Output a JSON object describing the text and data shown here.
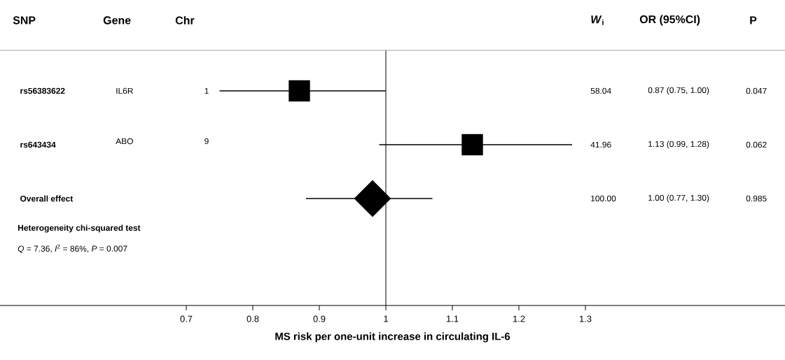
{
  "chart_data": {
    "type": "scatter",
    "orientation": "horizontal",
    "categories": [
      "rs56383622",
      "rs643434",
      "Overall  effect"
    ],
    "series": [
      {
        "color": "#000000",
        "marker": "square",
        "values": [
          0.87,
          1.13,
          null
        ],
        "errors": [
          [
            0.75,
            1.0
          ],
          [
            0.99,
            1.28
          ],
          null
        ]
      },
      {
        "color": "#000000",
        "marker": "diamond",
        "values": [
          null,
          null,
          0.98
        ],
        "errors": [
          null,
          null,
          [
            0.88,
            1.07
          ]
        ]
      }
    ],
    "xlim": [
      0.42,
      1.6
    ],
    "xticks": [
      0.7,
      0.8,
      0.9,
      1,
      1.1,
      1.2,
      1.3
    ],
    "xlabel": "MS risk per one-unit increase in circulating IL-6",
    "ref_lines": [
      {
        "axis": "x",
        "value": 1,
        "color": "#000000"
      }
    ],
    "annotations": [
      "SNP",
      "Gene",
      "Chr",
      "*W*$_{i}$",
      "OR (95%CI)",
      "P",
      "IL6R",
      "1",
      "58.04",
      "0.87 (0.75, 1.00)",
      "0.047",
      "ABO",
      "9",
      "41.96",
      "1.13 (0.99, 1.28)",
      "0.062",
      "100.00",
      "1.00 (0.77, 1.30)",
      "0.985",
      "Heterogeneity chi-squared test",
      "*Q* = 7.36, *I*$^{2}$ = 86%, *P* = 0.007"
    ]
  }
}
